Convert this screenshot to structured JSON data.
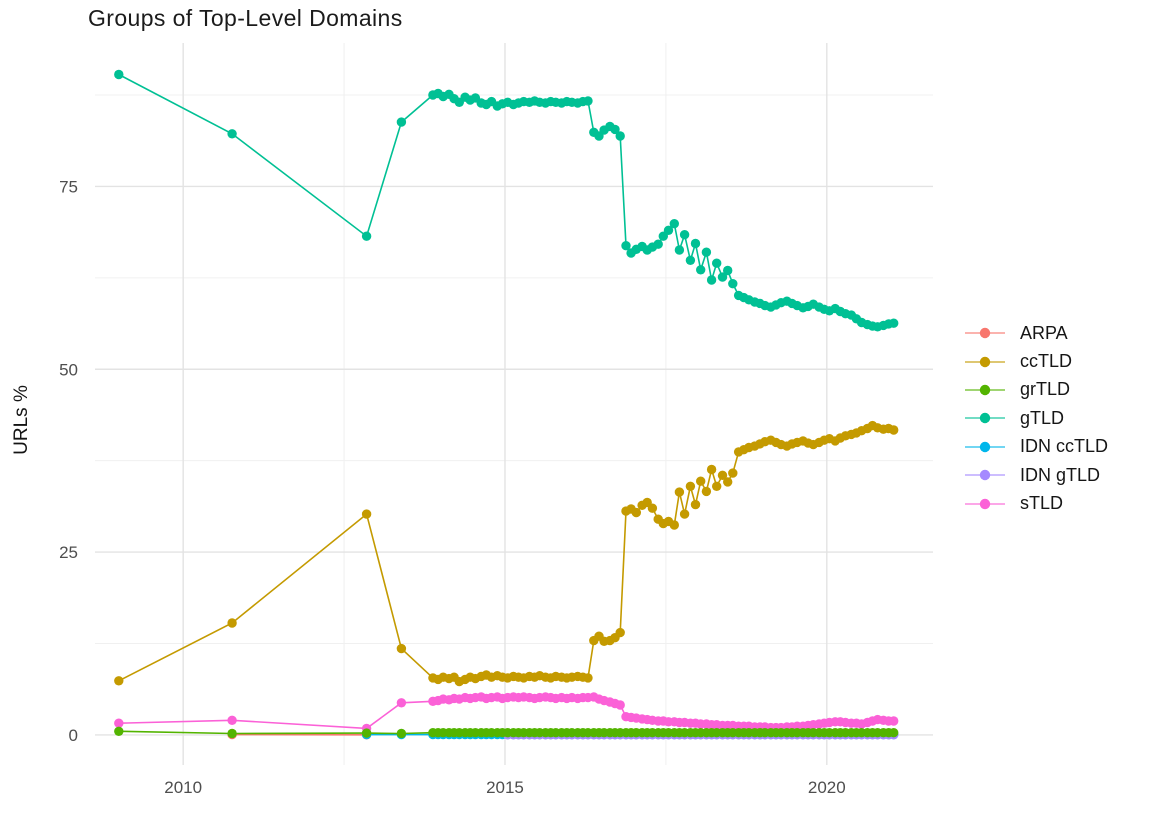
{
  "chart_data": {
    "type": "line",
    "title": "Groups of Top-Level Domains",
    "xlabel": "",
    "ylabel": "URLs %",
    "grid": true,
    "legend_position": "right",
    "xlim": [
      2008.63,
      2021.65
    ],
    "ylim": [
      -4.11,
      94.61
    ],
    "x_ticks": [
      {
        "v": 2010,
        "label": "2010"
      },
      {
        "v": 2015,
        "label": "2015"
      },
      {
        "v": 2020,
        "label": "2020"
      }
    ],
    "x_minor_ticks": [
      2012.5,
      2017.5
    ],
    "y_ticks": [
      {
        "v": 0,
        "label": "0"
      },
      {
        "v": 25,
        "label": "25"
      },
      {
        "v": 50,
        "label": "50"
      },
      {
        "v": 75,
        "label": "75"
      }
    ],
    "y_minor_ticks": [
      12.5,
      37.5,
      62.5,
      87.5
    ],
    "monthly_x": [
      2013.88,
      2013.96,
      2014.04,
      2014.13,
      2014.21,
      2014.29,
      2014.38,
      2014.46,
      2014.54,
      2014.63,
      2014.71,
      2014.79,
      2014.88,
      2014.96,
      2015.04,
      2015.13,
      2015.21,
      2015.29,
      2015.38,
      2015.46,
      2015.54,
      2015.63,
      2015.71,
      2015.79,
      2015.88,
      2015.96,
      2016.04,
      2016.13,
      2016.21,
      2016.29,
      2016.38,
      2016.46,
      2016.54,
      2016.63,
      2016.71,
      2016.79,
      2016.88,
      2016.96,
      2017.04,
      2017.13,
      2017.21,
      2017.29,
      2017.38,
      2017.46,
      2017.54,
      2017.63,
      2017.71,
      2017.79,
      2017.88,
      2017.96,
      2018.04,
      2018.13,
      2018.21,
      2018.29,
      2018.38,
      2018.46,
      2018.54,
      2018.63,
      2018.71,
      2018.79,
      2018.88,
      2018.96,
      2019.04,
      2019.13,
      2019.21,
      2019.29,
      2019.38,
      2019.46,
      2019.54,
      2019.63,
      2019.71,
      2019.79,
      2019.88,
      2019.96,
      2020.04,
      2020.13,
      2020.21,
      2020.29,
      2020.38,
      2020.46,
      2020.54,
      2020.63,
      2020.71,
      2020.79,
      2020.88,
      2020.96,
      2021.04
    ],
    "series": [
      {
        "name": "ARPA",
        "color": "#F8766D",
        "sparse": [
          [
            2010.76,
            0.05
          ],
          [
            2012.85,
            0.02
          ]
        ]
      },
      {
        "name": "ccTLD",
        "color": "#C49A00",
        "sparse": [
          [
            2009.0,
            7.4
          ],
          [
            2010.76,
            15.3
          ],
          [
            2012.85,
            30.2
          ],
          [
            2013.39,
            11.8
          ]
        ],
        "monthly_y": [
          7.8,
          7.6,
          7.9,
          7.7,
          7.9,
          7.3,
          7.6,
          7.9,
          7.7,
          8.0,
          8.2,
          7.9,
          8.1,
          7.9,
          7.8,
          8.0,
          7.9,
          7.8,
          8.0,
          7.9,
          8.1,
          7.9,
          7.8,
          8.0,
          7.9,
          7.8,
          7.9,
          8.0,
          7.9,
          7.8,
          12.9,
          13.5,
          12.8,
          12.9,
          13.3,
          14.0,
          30.6,
          30.9,
          30.4,
          31.4,
          31.8,
          31.0,
          29.5,
          28.9,
          29.2,
          28.7,
          33.2,
          30.2,
          34.0,
          31.5,
          34.7,
          33.3,
          36.3,
          34.0,
          35.5,
          34.6,
          35.8,
          38.7,
          39.0,
          39.3,
          39.5,
          39.8,
          40.1,
          40.3,
          40.0,
          39.7,
          39.5,
          39.8,
          40.0,
          40.2,
          39.9,
          39.7,
          40.0,
          40.3,
          40.5,
          40.2,
          40.6,
          40.9,
          41.1,
          41.3,
          41.6,
          41.9,
          42.3,
          42.0,
          41.8,
          41.9,
          41.7
        ]
      },
      {
        "name": "grTLD",
        "color": "#53B400",
        "sparse": [
          [
            2009.0,
            0.5
          ],
          [
            2010.76,
            0.2
          ],
          [
            2012.85,
            0.25
          ],
          [
            2013.39,
            0.2
          ]
        ],
        "flat": {
          "value": 0.3
        }
      },
      {
        "name": "gTLD",
        "color": "#00C094",
        "sparse": [
          [
            2009.0,
            90.3
          ],
          [
            2010.76,
            82.2
          ],
          [
            2012.85,
            68.2
          ],
          [
            2013.39,
            83.8
          ]
        ],
        "monthly_y": [
          87.5,
          87.7,
          87.3,
          87.6,
          87.0,
          86.5,
          87.2,
          86.8,
          87.1,
          86.4,
          86.2,
          86.6,
          86.0,
          86.3,
          86.5,
          86.2,
          86.4,
          86.6,
          86.5,
          86.7,
          86.5,
          86.4,
          86.6,
          86.5,
          86.4,
          86.6,
          86.5,
          86.4,
          86.6,
          86.7,
          82.4,
          81.9,
          82.7,
          83.2,
          82.8,
          81.9,
          66.9,
          65.9,
          66.4,
          66.8,
          66.3,
          66.7,
          67.1,
          68.2,
          69.0,
          69.9,
          66.3,
          68.4,
          64.9,
          67.2,
          63.6,
          66.0,
          62.2,
          64.5,
          62.6,
          63.5,
          61.7,
          60.1,
          59.8,
          59.5,
          59.2,
          59.0,
          58.7,
          58.5,
          58.8,
          59.1,
          59.3,
          59.0,
          58.7,
          58.4,
          58.6,
          58.9,
          58.5,
          58.2,
          58.0,
          58.3,
          57.9,
          57.6,
          57.4,
          56.9,
          56.4,
          56.1,
          55.9,
          55.8,
          56.0,
          56.2,
          56.3
        ]
      },
      {
        "name": "IDN ccTLD",
        "color": "#00B6EB",
        "sparse": [
          [
            2012.85,
            0.05
          ],
          [
            2013.39,
            0.05
          ]
        ],
        "flat": {
          "value": 0.05
        }
      },
      {
        "name": "IDN gTLD",
        "color": "#A58AFF",
        "flat": {
          "value": 0.02,
          "from": 2015.0
        }
      },
      {
        "name": "sTLD",
        "color": "#FB61D7",
        "sparse": [
          [
            2009.0,
            1.6
          ],
          [
            2010.76,
            2.0
          ],
          [
            2012.85,
            0.9
          ],
          [
            2013.39,
            4.4
          ]
        ],
        "monthly_y": [
          4.6,
          4.7,
          4.9,
          4.8,
          5.0,
          4.9,
          5.1,
          5.0,
          5.1,
          5.2,
          5.0,
          5.1,
          5.2,
          5.0,
          5.1,
          5.2,
          5.1,
          5.2,
          5.1,
          5.0,
          5.1,
          5.2,
          5.1,
          5.0,
          5.1,
          5.0,
          5.1,
          5.0,
          5.1,
          5.1,
          5.2,
          4.9,
          4.7,
          4.5,
          4.3,
          4.1,
          2.5,
          2.4,
          2.3,
          2.2,
          2.1,
          2.0,
          1.9,
          1.9,
          1.8,
          1.8,
          1.7,
          1.7,
          1.6,
          1.6,
          1.5,
          1.5,
          1.4,
          1.4,
          1.3,
          1.3,
          1.3,
          1.2,
          1.2,
          1.2,
          1.1,
          1.1,
          1.1,
          1.0,
          1.0,
          1.0,
          1.1,
          1.1,
          1.2,
          1.2,
          1.3,
          1.4,
          1.5,
          1.6,
          1.7,
          1.8,
          1.8,
          1.7,
          1.6,
          1.6,
          1.5,
          1.7,
          1.9,
          2.1,
          2.0,
          1.9,
          1.9
        ]
      }
    ]
  }
}
